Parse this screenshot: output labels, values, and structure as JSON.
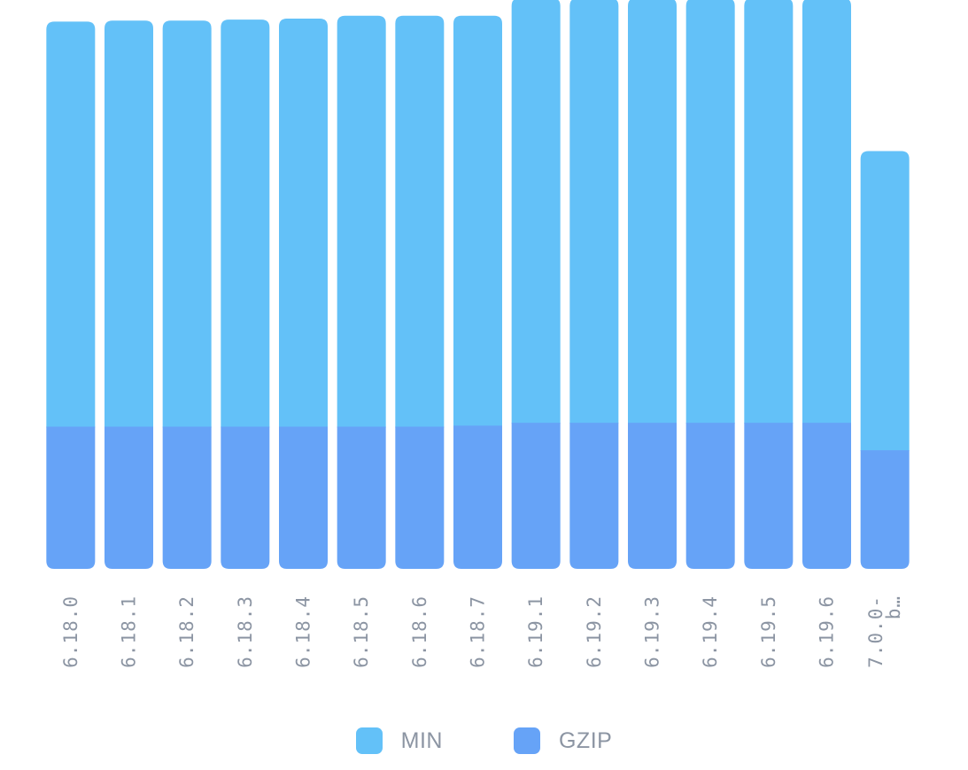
{
  "chart_data": {
    "type": "bar",
    "stacked": true,
    "categories": [
      "6.18.0",
      "6.18.1",
      "6.18.2",
      "6.18.3",
      "6.18.4",
      "6.18.5",
      "6.18.6",
      "6.18.7",
      "6.19.1",
      "6.19.2",
      "6.19.3",
      "6.19.4",
      "6.19.5",
      "6.19.6",
      "7.0.0-b…"
    ],
    "series": [
      {
        "name": "GZIP",
        "color": "#66a3f7",
        "values": [
          14.5,
          14.5,
          14.5,
          14.5,
          14.5,
          14.5,
          14.5,
          14.6,
          14.9,
          14.9,
          14.9,
          14.9,
          14.9,
          14.9,
          12.1
        ]
      },
      {
        "name": "MIN",
        "color": "#63c1f8",
        "values": [
          41.3,
          41.4,
          41.4,
          41.5,
          41.6,
          41.9,
          41.9,
          41.8,
          43.3,
          43.3,
          43.3,
          43.3,
          43.3,
          43.3,
          30.5
        ]
      }
    ],
    "legend": {
      "position": "bottom",
      "order": [
        "MIN",
        "GZIP"
      ]
    },
    "grid": false,
    "ylim": [
      0,
      58
    ]
  }
}
